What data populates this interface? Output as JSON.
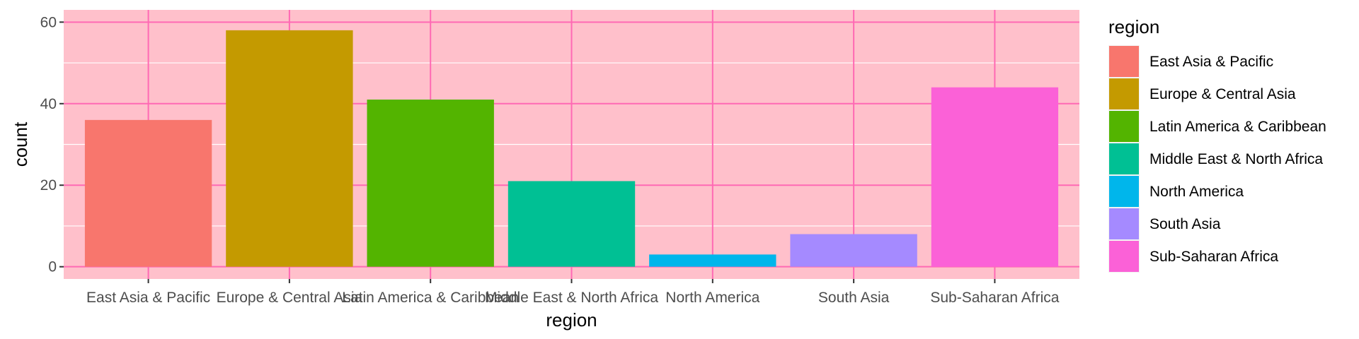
{
  "chart_data": {
    "type": "bar",
    "title": "",
    "xlabel": "region",
    "ylabel": "count",
    "ylim": [
      0,
      60
    ],
    "yticks": [
      "0",
      "20",
      "40",
      "60"
    ],
    "categories": [
      "East Asia & Pacific",
      "Europe & Central Asia",
      "Latin America & Caribbean",
      "Middle East & North Africa",
      "North America",
      "South Asia",
      "Sub-Saharan Africa"
    ],
    "values": [
      36,
      58,
      41,
      21,
      3,
      8,
      44
    ],
    "colors": [
      "#F8766D",
      "#C49A00",
      "#53B400",
      "#00C094",
      "#00B6EB",
      "#A58AFF",
      "#FB61D7"
    ],
    "grid": true,
    "panel_background": "#FFC0CB",
    "grid_color": "#FF69B4",
    "legend": {
      "title": "region",
      "placement": "right"
    }
  }
}
